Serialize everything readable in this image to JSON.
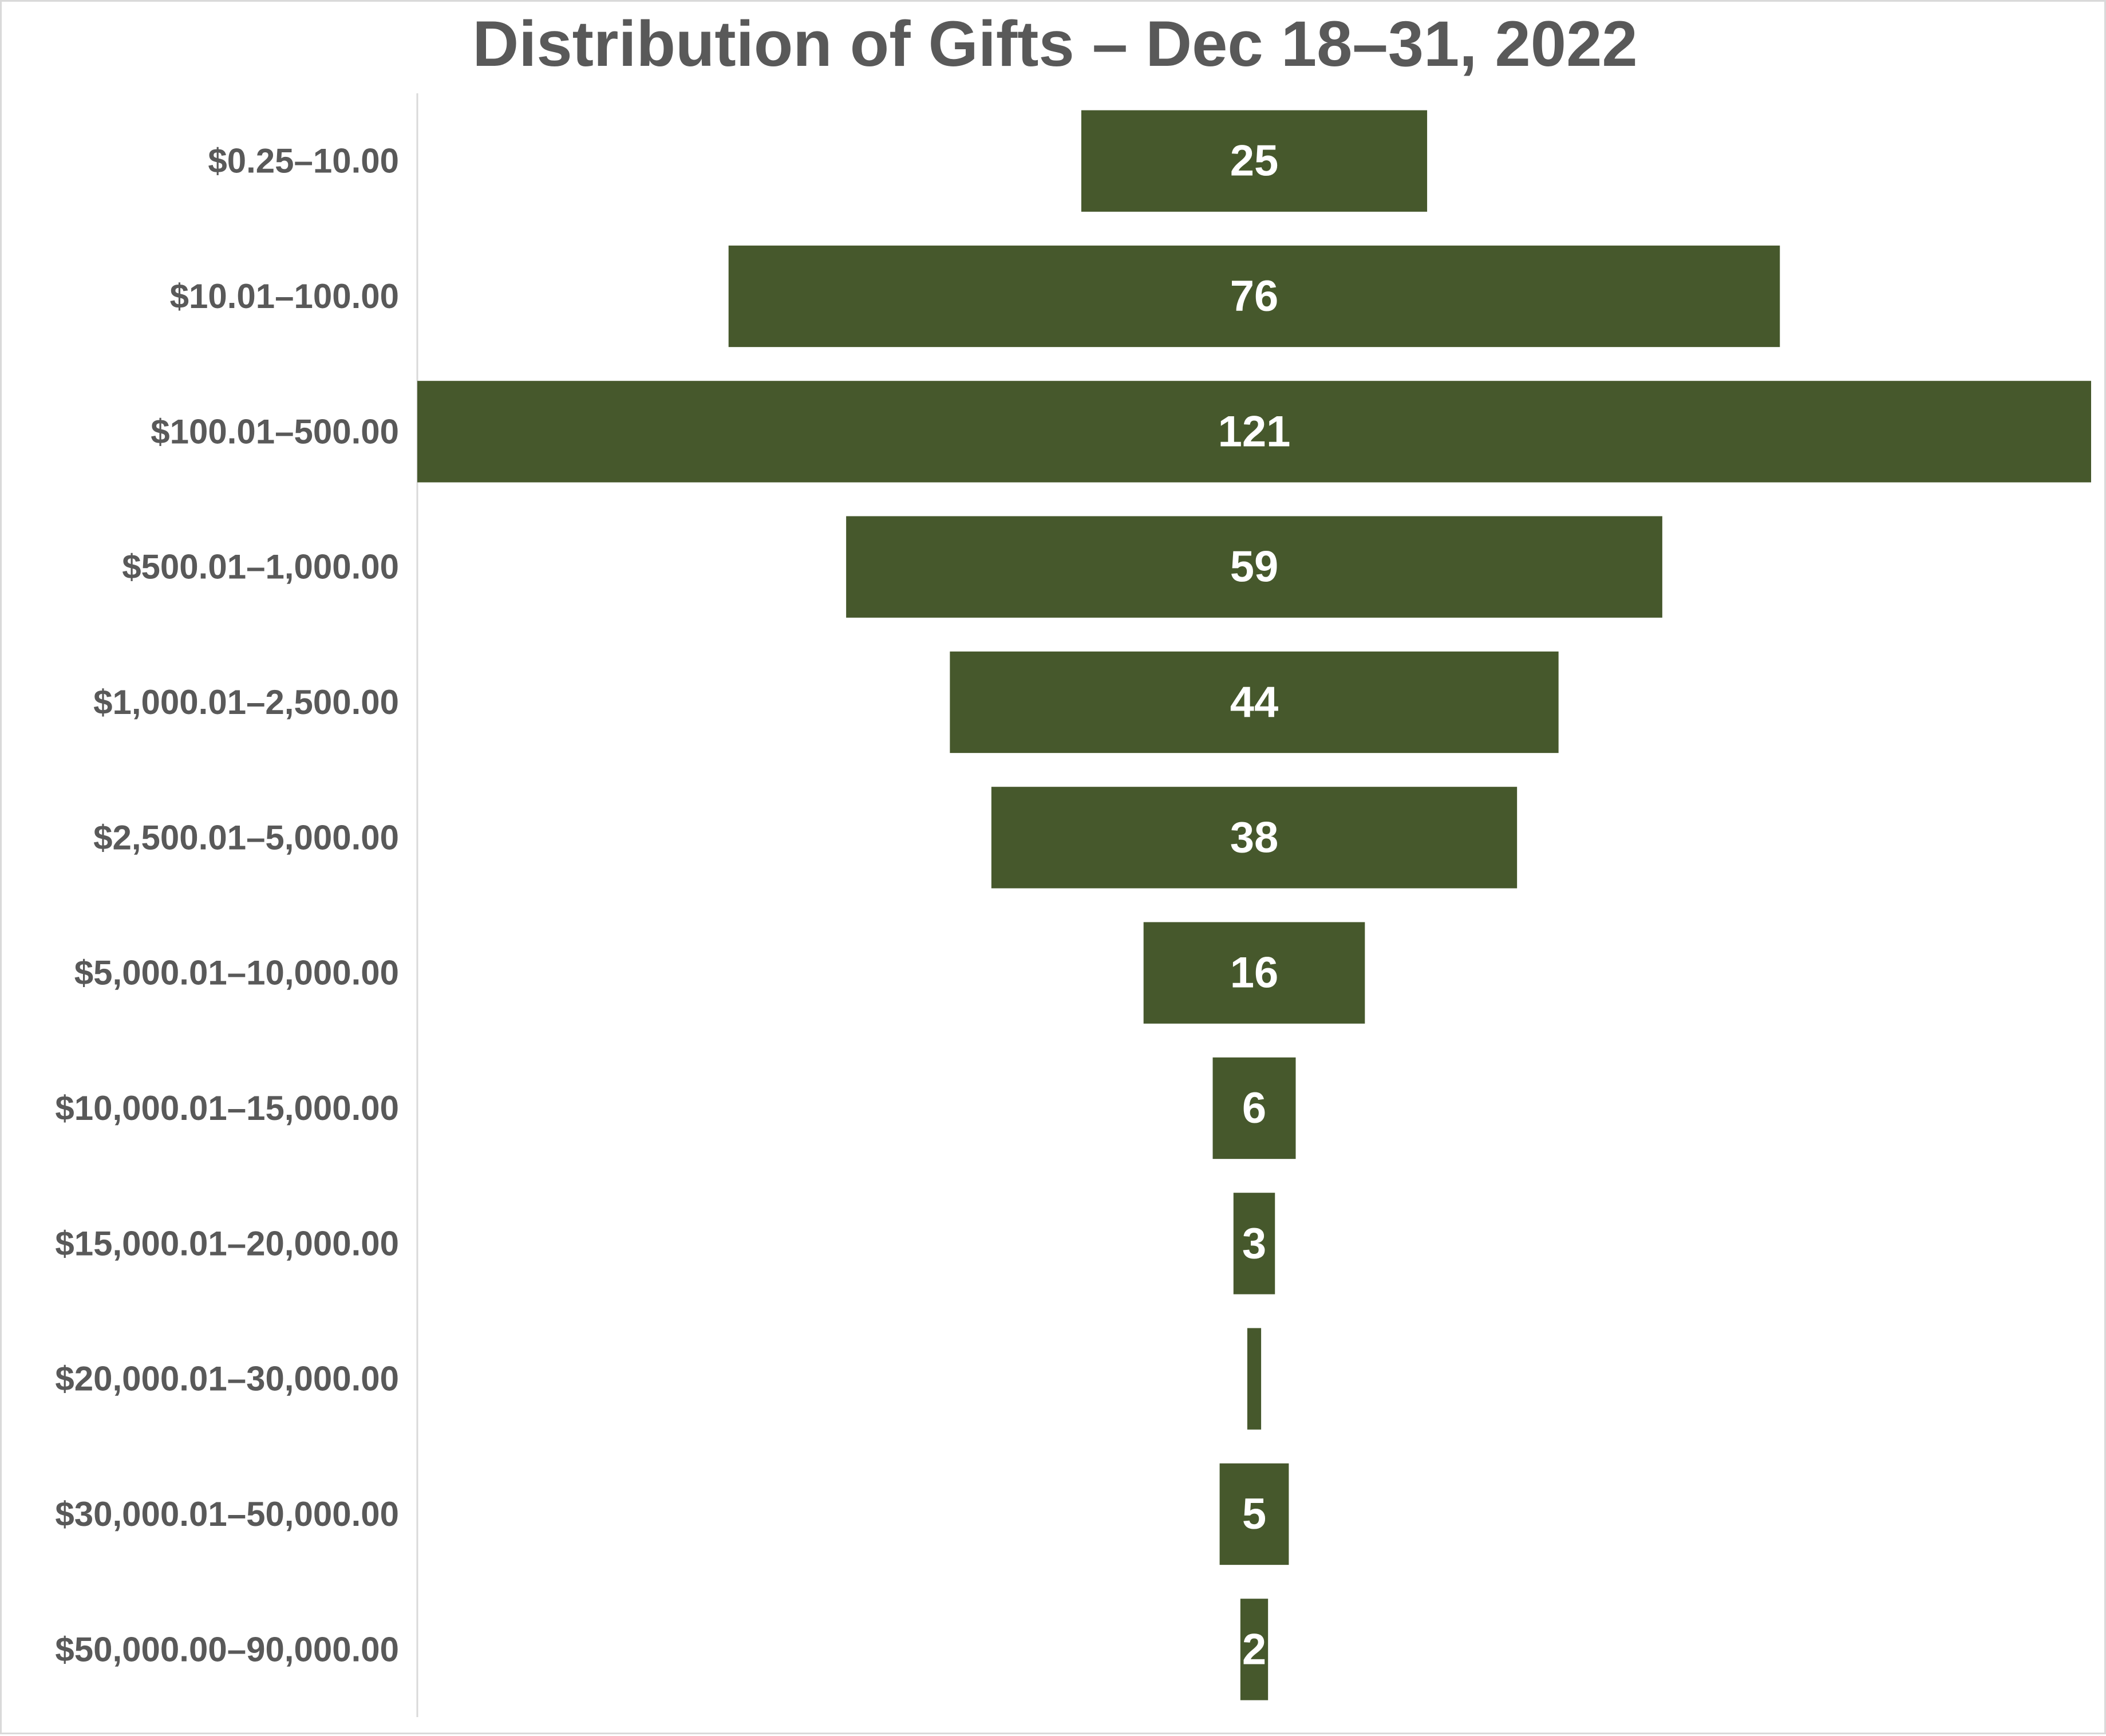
{
  "chart_data": {
    "type": "bar",
    "orientation": "horizontal",
    "style": "funnel-centered",
    "title": "Distribution of Gifts – Dec 18–31, 2022",
    "xlabel": "",
    "ylabel": "",
    "categories": [
      "$0.25–10.00",
      "$10.01–100.00",
      "$100.01–500.00",
      "$500.01–1,000.00",
      "$1,000.01–2,500.00",
      "$2,500.01–5,000.00",
      "$5,000.01–10,000.00",
      "$10,000.01–15,000.00",
      "$15,000.01–20,000.00",
      "$20,000.01–30,000.00",
      "$30,000.01–50,000.00",
      "$50,000.00–90,000.00"
    ],
    "values": [
      25,
      76,
      121,
      59,
      44,
      38,
      16,
      6,
      3,
      1,
      5,
      2
    ],
    "value_labels": [
      "25",
      "76",
      "121",
      "59",
      "44",
      "38",
      "16",
      "6",
      "3",
      "",
      "5",
      "2"
    ],
    "xlim": [
      0,
      121
    ],
    "grid": false,
    "legend": "none",
    "colors": {
      "bar": "#46582c",
      "text": "#595959",
      "axis": "#d9d9d9"
    }
  }
}
